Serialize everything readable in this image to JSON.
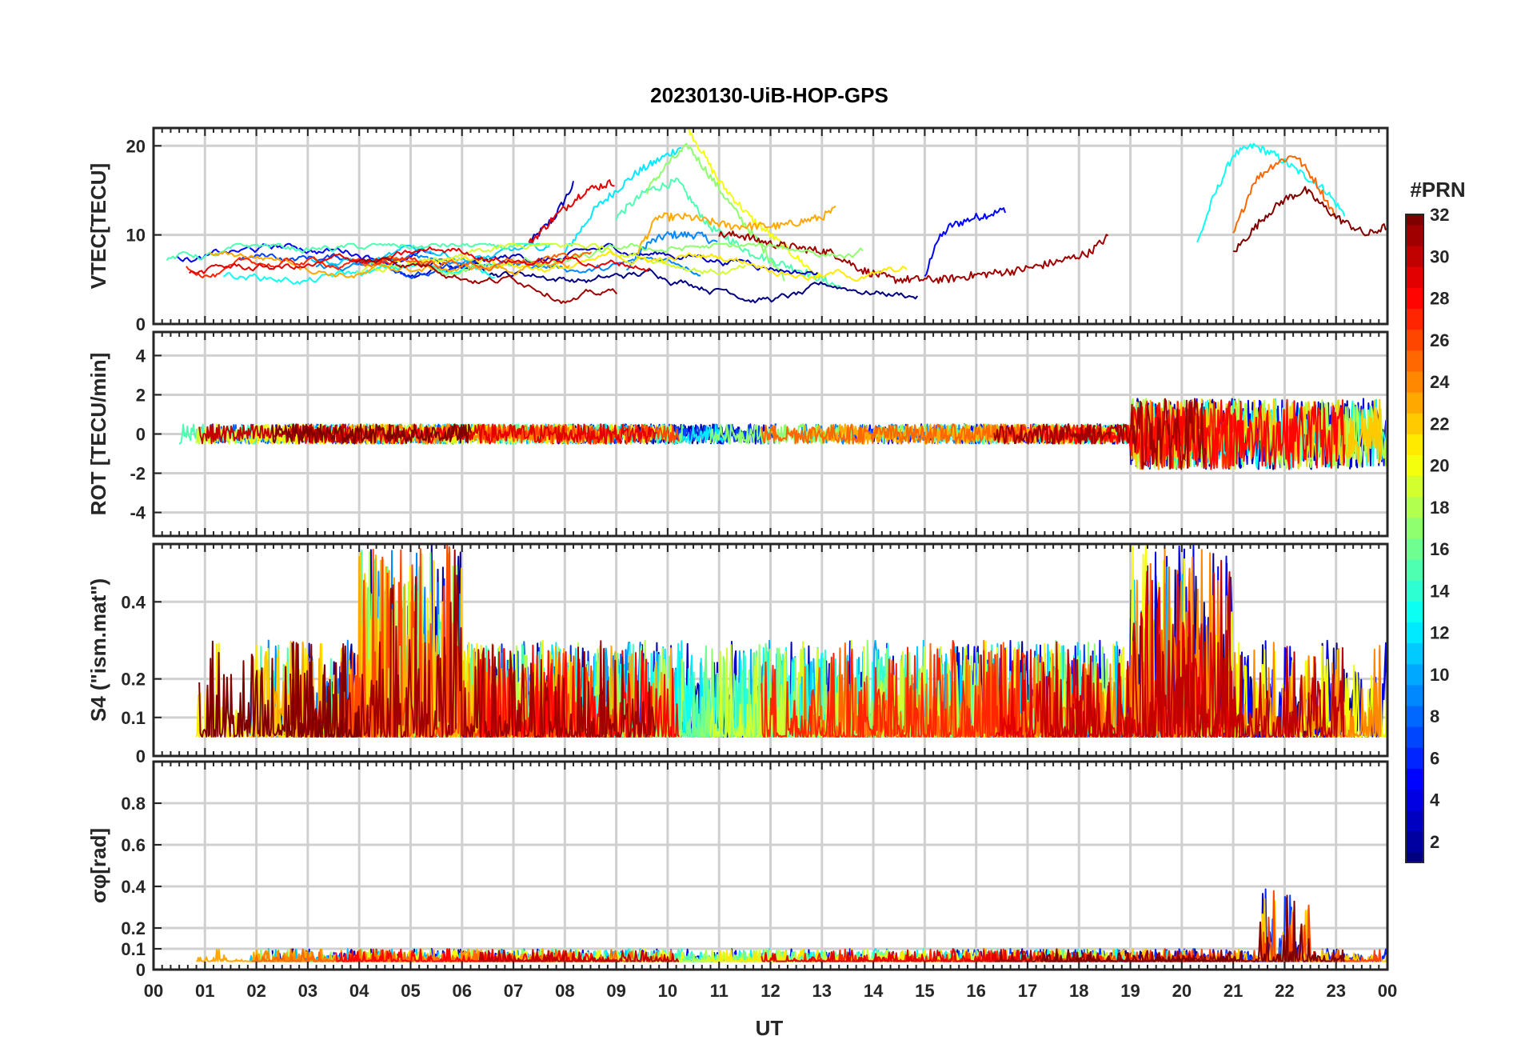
{
  "chart_data": {
    "type": "line",
    "title": "20230130-UiB-HOP-GPS",
    "xlabel": "UT",
    "x_ticks": [
      "00",
      "01",
      "02",
      "03",
      "04",
      "05",
      "06",
      "07",
      "08",
      "09",
      "10",
      "11",
      "12",
      "13",
      "14",
      "15",
      "16",
      "17",
      "18",
      "19",
      "20",
      "21",
      "22",
      "23",
      "00"
    ],
    "xlim_hours": [
      0,
      24
    ],
    "grid": true,
    "panels": [
      {
        "id": "vtec",
        "ylabel": "VTEC[TECU]",
        "ylim": [
          0,
          22
        ],
        "yticks": [
          0,
          10,
          20
        ],
        "series": [
          {
            "prn": 3,
            "points": [
              [
                7.3,
                9
              ],
              [
                7.8,
                12
              ],
              [
                8.2,
                16
              ]
            ]
          },
          {
            "prn": 5,
            "points": [
              [
                15.0,
                5
              ],
              [
                15.2,
                9
              ],
              [
                15.5,
                11
              ],
              [
                16,
                12
              ],
              [
                16.4,
                12.5
              ],
              [
                16.6,
                13
              ]
            ]
          },
          {
            "prn": 9,
            "points": [
              [
                9.2,
                6
              ],
              [
                9.6,
                9
              ],
              [
                10,
                10
              ],
              [
                10.6,
                10
              ],
              [
                11,
                9
              ]
            ]
          },
          {
            "prn": 12,
            "points": [
              [
                8.0,
                8
              ],
              [
                8.6,
                13
              ],
              [
                9.4,
                17
              ],
              [
                10.0,
                19
              ],
              [
                10.3,
                20
              ]
            ]
          },
          {
            "prn": 13,
            "points": [
              [
                20.3,
                9
              ],
              [
                20.6,
                14
              ],
              [
                21.0,
                19
              ],
              [
                21.4,
                20
              ],
              [
                21.8,
                19
              ],
              [
                22.3,
                17
              ],
              [
                22.8,
                15
              ],
              [
                23.2,
                12
              ]
            ]
          },
          {
            "prn": 15,
            "points": [
              [
                9.0,
                12
              ],
              [
                9.6,
                15
              ],
              [
                10.2,
                16
              ],
              [
                10.8,
                11
              ],
              [
                11.6,
                8
              ],
              [
                12.6,
                6
              ],
              [
                13.4,
                4
              ]
            ]
          },
          {
            "prn": 17,
            "points": [
              [
                9.6,
                15
              ],
              [
                10.0,
                18
              ],
              [
                10.4,
                20
              ],
              [
                11.4,
                12
              ],
              [
                12.3,
                5
              ]
            ]
          },
          {
            "prn": 20,
            "points": [
              [
                10.4,
                22
              ],
              [
                11.0,
                16
              ],
              [
                11.6,
                12
              ],
              [
                12.4,
                8
              ],
              [
                13.0,
                5
              ]
            ]
          },
          {
            "prn": 23,
            "points": [
              [
                9.4,
                8
              ],
              [
                9.8,
                12
              ],
              [
                10.4,
                12
              ],
              [
                11.2,
                11
              ],
              [
                12.2,
                11
              ],
              [
                13.0,
                12
              ],
              [
                13.3,
                13
              ]
            ]
          },
          {
            "prn": 25,
            "points": [
              [
                21.0,
                10
              ],
              [
                21.4,
                16
              ],
              [
                21.8,
                18
              ],
              [
                22.2,
                19
              ],
              [
                22.6,
                16
              ],
              [
                23.0,
                12
              ]
            ]
          },
          {
            "prn": 29,
            "points": [
              [
                7.3,
                9
              ],
              [
                7.8,
                12
              ],
              [
                8.4,
                15
              ],
              [
                9.0,
                16
              ]
            ]
          },
          {
            "prn": 31,
            "points": [
              [
                11.0,
                10
              ],
              [
                11.4,
                10
              ],
              [
                12,
                9
              ],
              [
                12.6,
                8.5
              ],
              [
                13.2,
                8
              ],
              [
                13.8,
                6
              ],
              [
                14.4,
                5
              ],
              [
                15.4,
                5
              ],
              [
                16.0,
                5.5
              ],
              [
                16.8,
                6
              ],
              [
                17.6,
                7
              ],
              [
                18.2,
                8
              ],
              [
                18.6,
                10
              ]
            ]
          },
          {
            "prn": 32,
            "points": [
              [
                21.0,
                8
              ],
              [
                21.6,
                12
              ],
              [
                22.0,
                14
              ],
              [
                22.4,
                15
              ],
              [
                23.0,
                12
              ],
              [
                23.6,
                10
              ],
              [
                24,
                11
              ]
            ]
          }
        ]
      },
      {
        "id": "rot",
        "ylabel": "ROT [TECU/min]",
        "ylim": [
          -5.2,
          5.2
        ],
        "yticks": [
          -4,
          -2,
          0,
          2,
          4
        ],
        "series": []
      },
      {
        "id": "s4",
        "ylabel": "S4 (\"ism.mat\")",
        "ylim": [
          0,
          0.55
        ],
        "yticks": [
          0,
          0.1,
          0.2,
          0.4
        ],
        "series": []
      },
      {
        "id": "sigphi",
        "ylabel": "σφ[rad]",
        "ylim": [
          0,
          1.0
        ],
        "yticks": [
          0,
          0.1,
          0.2,
          0.4,
          0.6,
          0.8
        ],
        "series": []
      }
    ],
    "colorbar": {
      "label": "#PRN",
      "range": [
        1,
        32
      ],
      "ticks": [
        2,
        4,
        6,
        8,
        10,
        12,
        14,
        16,
        18,
        20,
        22,
        24,
        26,
        28,
        30,
        32
      ],
      "colormap": "jet"
    }
  }
}
